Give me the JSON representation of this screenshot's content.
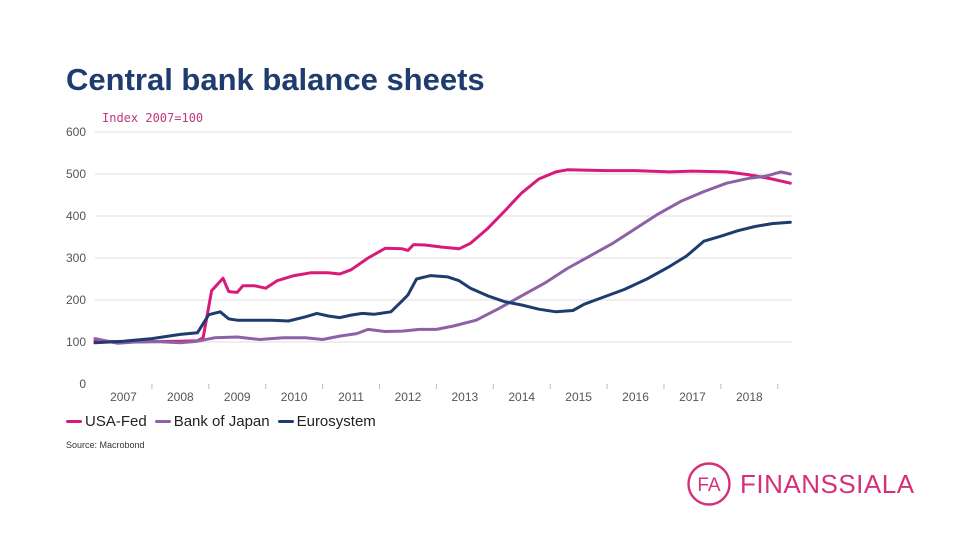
{
  "slide": {
    "title": "Central bank balance sheets",
    "source": "Source: Macrobond"
  },
  "logo": {
    "mark": "FA",
    "text": "FINANSSIALA"
  },
  "colors": {
    "usa_fed": "#d81b7a",
    "boj": "#8e61a6",
    "euro": "#1f3c6e",
    "grid": "#dddddd",
    "unit": "#c0377f"
  },
  "chart_data": {
    "type": "line",
    "unit_label": "Index 2007=100",
    "ylim": [
      0,
      600
    ],
    "yticks": [
      "0",
      "100",
      "200",
      "300",
      "400",
      "500",
      "600"
    ],
    "xlim": [
      2006.5,
      2018.75
    ],
    "xticks": [
      "2007",
      "2008",
      "2009",
      "2010",
      "2011",
      "2012",
      "2013",
      "2014",
      "2015",
      "2016",
      "2017",
      "2018"
    ],
    "grid": true,
    "legend_position": "bottom-left",
    "series": [
      {
        "name": "USA-Fed",
        "color": "#d81b7a",
        "points": [
          [
            2006.5,
            103
          ],
          [
            2007.0,
            100
          ],
          [
            2007.5,
            101
          ],
          [
            2008.0,
            102
          ],
          [
            2008.3,
            103
          ],
          [
            2008.4,
            110
          ],
          [
            2008.55,
            222
          ],
          [
            2008.75,
            252
          ],
          [
            2008.85,
            220
          ],
          [
            2009.0,
            218
          ],
          [
            2009.1,
            234
          ],
          [
            2009.3,
            234
          ],
          [
            2009.5,
            228
          ],
          [
            2009.7,
            246
          ],
          [
            2010.0,
            258
          ],
          [
            2010.3,
            265
          ],
          [
            2010.6,
            265
          ],
          [
            2010.8,
            262
          ],
          [
            2011.0,
            272
          ],
          [
            2011.3,
            300
          ],
          [
            2011.6,
            323
          ],
          [
            2011.9,
            322
          ],
          [
            2012.0,
            318
          ],
          [
            2012.1,
            332
          ],
          [
            2012.3,
            331
          ],
          [
            2012.6,
            326
          ],
          [
            2012.9,
            322
          ],
          [
            2013.1,
            335
          ],
          [
            2013.4,
            370
          ],
          [
            2013.7,
            412
          ],
          [
            2014.0,
            455
          ],
          [
            2014.3,
            488
          ],
          [
            2014.6,
            505
          ],
          [
            2014.8,
            510
          ],
          [
            2015.5,
            508
          ],
          [
            2016.0,
            508
          ],
          [
            2016.6,
            505
          ],
          [
            2017.0,
            507
          ],
          [
            2017.6,
            505
          ],
          [
            2018.0,
            498
          ],
          [
            2018.4,
            488
          ],
          [
            2018.72,
            478
          ]
        ]
      },
      {
        "name": "Bank of Japan",
        "color": "#8e61a6",
        "points": [
          [
            2006.5,
            108
          ],
          [
            2006.9,
            97
          ],
          [
            2007.2,
            100
          ],
          [
            2007.6,
            101
          ],
          [
            2008.0,
            98
          ],
          [
            2008.3,
            102
          ],
          [
            2008.6,
            110
          ],
          [
            2009.0,
            112
          ],
          [
            2009.4,
            106
          ],
          [
            2009.8,
            110
          ],
          [
            2010.2,
            110
          ],
          [
            2010.5,
            106
          ],
          [
            2010.8,
            114
          ],
          [
            2011.1,
            120
          ],
          [
            2011.3,
            130
          ],
          [
            2011.6,
            125
          ],
          [
            2011.9,
            126
          ],
          [
            2012.2,
            130
          ],
          [
            2012.5,
            130
          ],
          [
            2012.8,
            138
          ],
          [
            2013.2,
            152
          ],
          [
            2013.6,
            180
          ],
          [
            2014.0,
            210
          ],
          [
            2014.4,
            240
          ],
          [
            2014.8,
            275
          ],
          [
            2015.2,
            305
          ],
          [
            2015.6,
            335
          ],
          [
            2016.0,
            370
          ],
          [
            2016.4,
            405
          ],
          [
            2016.8,
            435
          ],
          [
            2017.2,
            458
          ],
          [
            2017.6,
            478
          ],
          [
            2018.0,
            490
          ],
          [
            2018.3,
            495
          ],
          [
            2018.55,
            505
          ],
          [
            2018.72,
            500
          ]
        ]
      },
      {
        "name": "Eurosystem",
        "color": "#1f3c6e",
        "points": [
          [
            2006.5,
            98
          ],
          [
            2007.0,
            102
          ],
          [
            2007.5,
            108
          ],
          [
            2008.0,
            118
          ],
          [
            2008.3,
            122
          ],
          [
            2008.5,
            165
          ],
          [
            2008.7,
            172
          ],
          [
            2008.85,
            155
          ],
          [
            2009.0,
            152
          ],
          [
            2009.3,
            152
          ],
          [
            2009.6,
            152
          ],
          [
            2009.9,
            150
          ],
          [
            2010.2,
            160
          ],
          [
            2010.4,
            168
          ],
          [
            2010.6,
            162
          ],
          [
            2010.8,
            158
          ],
          [
            2011.0,
            164
          ],
          [
            2011.2,
            168
          ],
          [
            2011.4,
            166
          ],
          [
            2011.7,
            172
          ],
          [
            2011.9,
            198
          ],
          [
            2012.0,
            212
          ],
          [
            2012.15,
            250
          ],
          [
            2012.4,
            258
          ],
          [
            2012.7,
            255
          ],
          [
            2012.9,
            246
          ],
          [
            2013.1,
            228
          ],
          [
            2013.4,
            210
          ],
          [
            2013.7,
            196
          ],
          [
            2014.0,
            188
          ],
          [
            2014.3,
            178
          ],
          [
            2014.6,
            172
          ],
          [
            2014.9,
            175
          ],
          [
            2015.1,
            190
          ],
          [
            2015.4,
            205
          ],
          [
            2015.8,
            225
          ],
          [
            2016.2,
            250
          ],
          [
            2016.6,
            280
          ],
          [
            2016.9,
            305
          ],
          [
            2017.2,
            340
          ],
          [
            2017.5,
            352
          ],
          [
            2017.8,
            365
          ],
          [
            2018.1,
            375
          ],
          [
            2018.4,
            382
          ],
          [
            2018.72,
            385
          ]
        ]
      }
    ]
  }
}
